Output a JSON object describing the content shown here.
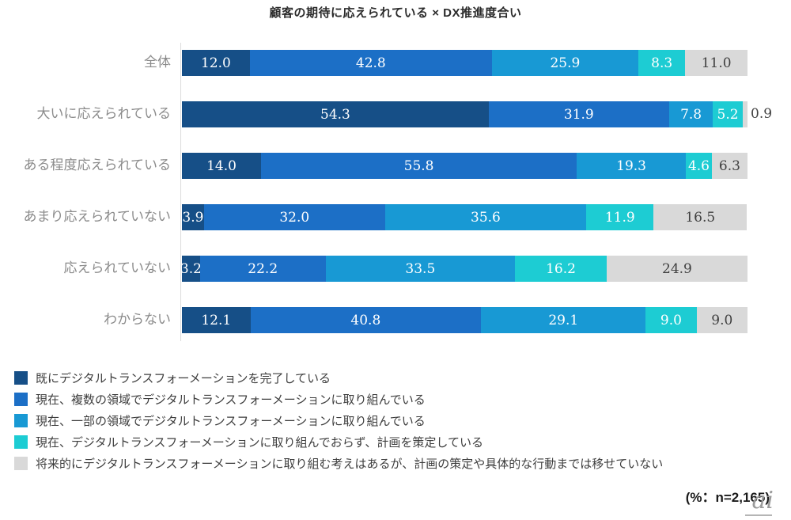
{
  "title": "顧客の期待に応えられている × DX推進度合い",
  "note": "(%：n=2,165)",
  "watermark": "ai",
  "colors": {
    "series": [
      "#164f87",
      "#1c6fc6",
      "#1899d4",
      "#1dccd3",
      "#d9d9d9"
    ],
    "axis_line": "#dcdcdc",
    "row_label": "#8b8b8b",
    "value_label_light": "#ffffff",
    "value_label_dark": "#404040"
  },
  "chart_data": {
    "type": "bar",
    "orientation": "horizontal-stacked",
    "title": "顧客の期待に応えられている × DX推進度合い",
    "xlabel": "",
    "ylabel": "",
    "xlim": [
      0,
      100
    ],
    "grid": false,
    "legend_position": "bottom-left",
    "value_unit": "%",
    "sample_size_note": "(%：n=2,165)",
    "categories": [
      "全体",
      "大いに応えられている",
      "ある程度応えられている",
      "あまり応えられていない",
      "応えられていない",
      "わからない"
    ],
    "series": [
      {
        "name": "既にデジタルトランスフォーメーションを完了している",
        "color": "#164f87",
        "values": [
          12.0,
          54.3,
          14.0,
          3.9,
          3.2,
          12.1
        ]
      },
      {
        "name": "現在、複数の領域でデジタルトランスフォーメーションに取り組んでいる",
        "color": "#1c6fc6",
        "values": [
          42.8,
          31.9,
          55.8,
          32.0,
          22.2,
          40.8
        ]
      },
      {
        "name": "現在、一部の領域でデジタルトランスフォーメーションに取り組んでいる",
        "color": "#1899d4",
        "values": [
          25.9,
          7.8,
          19.3,
          35.6,
          33.5,
          29.1
        ]
      },
      {
        "name": "現在、デジタルトランスフォーメーションに取り組んでおらず、計画を策定している",
        "color": "#1dccd3",
        "values": [
          8.3,
          5.2,
          4.6,
          11.9,
          16.2,
          9.0
        ]
      },
      {
        "name": "将来的にデジタルトランスフォーメーションに取り組む考えはあるが、計画の策定や具体的な行動までは移せていない",
        "color": "#d9d9d9",
        "values": [
          11.0,
          0.9,
          6.3,
          16.5,
          24.9,
          9.0
        ]
      }
    ]
  }
}
